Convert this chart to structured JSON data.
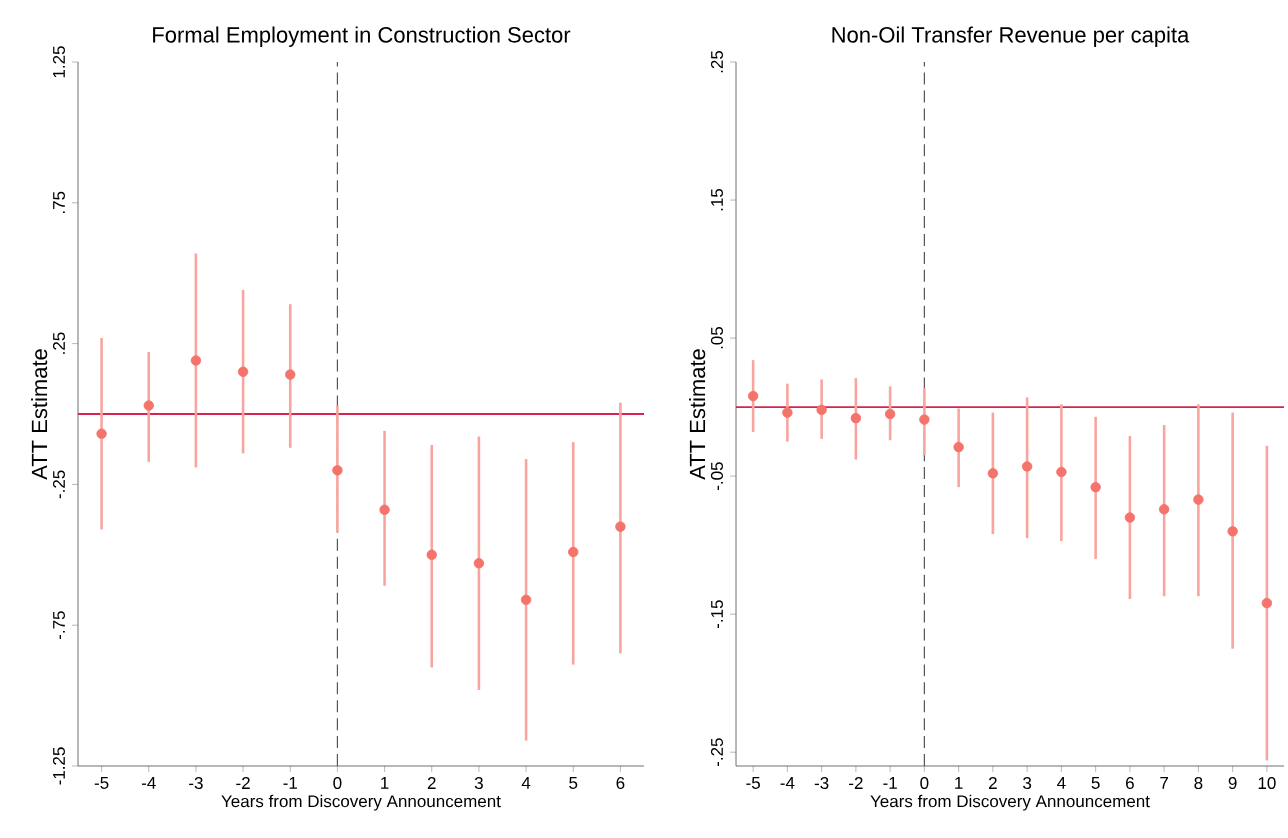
{
  "chart_data": [
    {
      "type": "scatter",
      "title": "Formal Employment in Construction Sector",
      "xlabel": "Years from Discovery Announcement",
      "ylabel": "ATT Estimate",
      "marker": "circle",
      "x": [
        -5,
        -4,
        -3,
        -2,
        -1,
        0,
        1,
        2,
        3,
        4,
        5,
        6
      ],
      "series": [
        {
          "color": "#f4736b",
          "values": [
            -0.07,
            0.03,
            0.19,
            0.15,
            0.14,
            -0.2,
            -0.34,
            -0.5,
            -0.53,
            -0.66,
            -0.49,
            -0.4
          ],
          "errors": [
            [
              -0.41,
              0.27
            ],
            [
              -0.17,
              0.22
            ],
            [
              -0.19,
              0.57
            ],
            [
              -0.14,
              0.44
            ],
            [
              -0.12,
              0.39
            ],
            [
              -0.42,
              0.03
            ],
            [
              -0.61,
              -0.06
            ],
            [
              -0.9,
              -0.11
            ],
            [
              -0.98,
              -0.08
            ],
            [
              -1.16,
              -0.16
            ],
            [
              -0.89,
              -0.1
            ],
            [
              -0.85,
              0.04
            ]
          ]
        }
      ],
      "xlim": [
        -5.5,
        6.5
      ],
      "ylim": [
        -1.25,
        1.25
      ],
      "xticks": [
        -5,
        -4,
        -3,
        -2,
        -1,
        0,
        1,
        2,
        3,
        4,
        5,
        6
      ],
      "yticks": [
        {
          "value": -1.25,
          "label": "-1.25"
        },
        {
          "value": -0.75,
          "label": "-.75"
        },
        {
          "value": -0.25,
          "label": "-.25"
        },
        {
          "value": 0.25,
          "label": ".25"
        },
        {
          "value": 0.75,
          "label": ".75"
        },
        {
          "value": 1.25,
          "label": "1.25"
        }
      ],
      "ref_lines": [
        {
          "axis": "y",
          "value": 0,
          "color": "#d62350",
          "line_style": "solid"
        },
        {
          "axis": "x",
          "value": 0,
          "color": "#555555",
          "line_style": "dashed"
        }
      ]
    },
    {
      "type": "scatter",
      "title": "Non-Oil Transfer Revenue per capita",
      "xlabel": "Years from Discovery Announcement",
      "ylabel": "ATT Estimate",
      "marker": "circle",
      "x": [
        -5,
        -4,
        -3,
        -2,
        -1,
        0,
        1,
        2,
        3,
        4,
        5,
        6,
        7,
        8,
        9,
        10
      ],
      "series": [
        {
          "color": "#f4736b",
          "values": [
            0.008,
            -0.004,
            -0.002,
            -0.008,
            -0.005,
            -0.009,
            -0.029,
            -0.048,
            -0.043,
            -0.047,
            -0.058,
            -0.08,
            -0.074,
            -0.067,
            -0.09,
            -0.142
          ],
          "errors": [
            [
              -0.018,
              0.034
            ],
            [
              -0.025,
              0.017
            ],
            [
              -0.023,
              0.02
            ],
            [
              -0.038,
              0.021
            ],
            [
              -0.024,
              0.015
            ],
            [
              -0.035,
              0.014
            ],
            [
              -0.058,
              -0.001
            ],
            [
              -0.092,
              -0.004
            ],
            [
              -0.095,
              0.007
            ],
            [
              -0.097,
              0.002
            ],
            [
              -0.11,
              -0.007
            ],
            [
              -0.139,
              -0.021
            ],
            [
              -0.137,
              -0.013
            ],
            [
              -0.137,
              0.002
            ],
            [
              -0.175,
              -0.004
            ],
            [
              -0.256,
              -0.028
            ]
          ]
        }
      ],
      "xlim": [
        -5.5,
        10.5
      ],
      "ylim": [
        -0.26,
        0.25
      ],
      "xticks": [
        -5,
        -4,
        -3,
        -2,
        -1,
        0,
        1,
        2,
        3,
        4,
        5,
        6,
        7,
        8,
        9,
        10
      ],
      "yticks": [
        {
          "value": -0.25,
          "label": "-.25"
        },
        {
          "value": -0.15,
          "label": "-.15"
        },
        {
          "value": -0.05,
          "label": "-.05"
        },
        {
          "value": 0.05,
          "label": ".05"
        },
        {
          "value": 0.15,
          "label": ".15"
        },
        {
          "value": 0.25,
          "label": ".25"
        }
      ],
      "ref_lines": [
        {
          "axis": "y",
          "value": 0,
          "color": "#d62350",
          "line_style": "solid"
        },
        {
          "axis": "x",
          "value": 0,
          "color": "#555555",
          "line_style": "dashed"
        }
      ]
    }
  ]
}
